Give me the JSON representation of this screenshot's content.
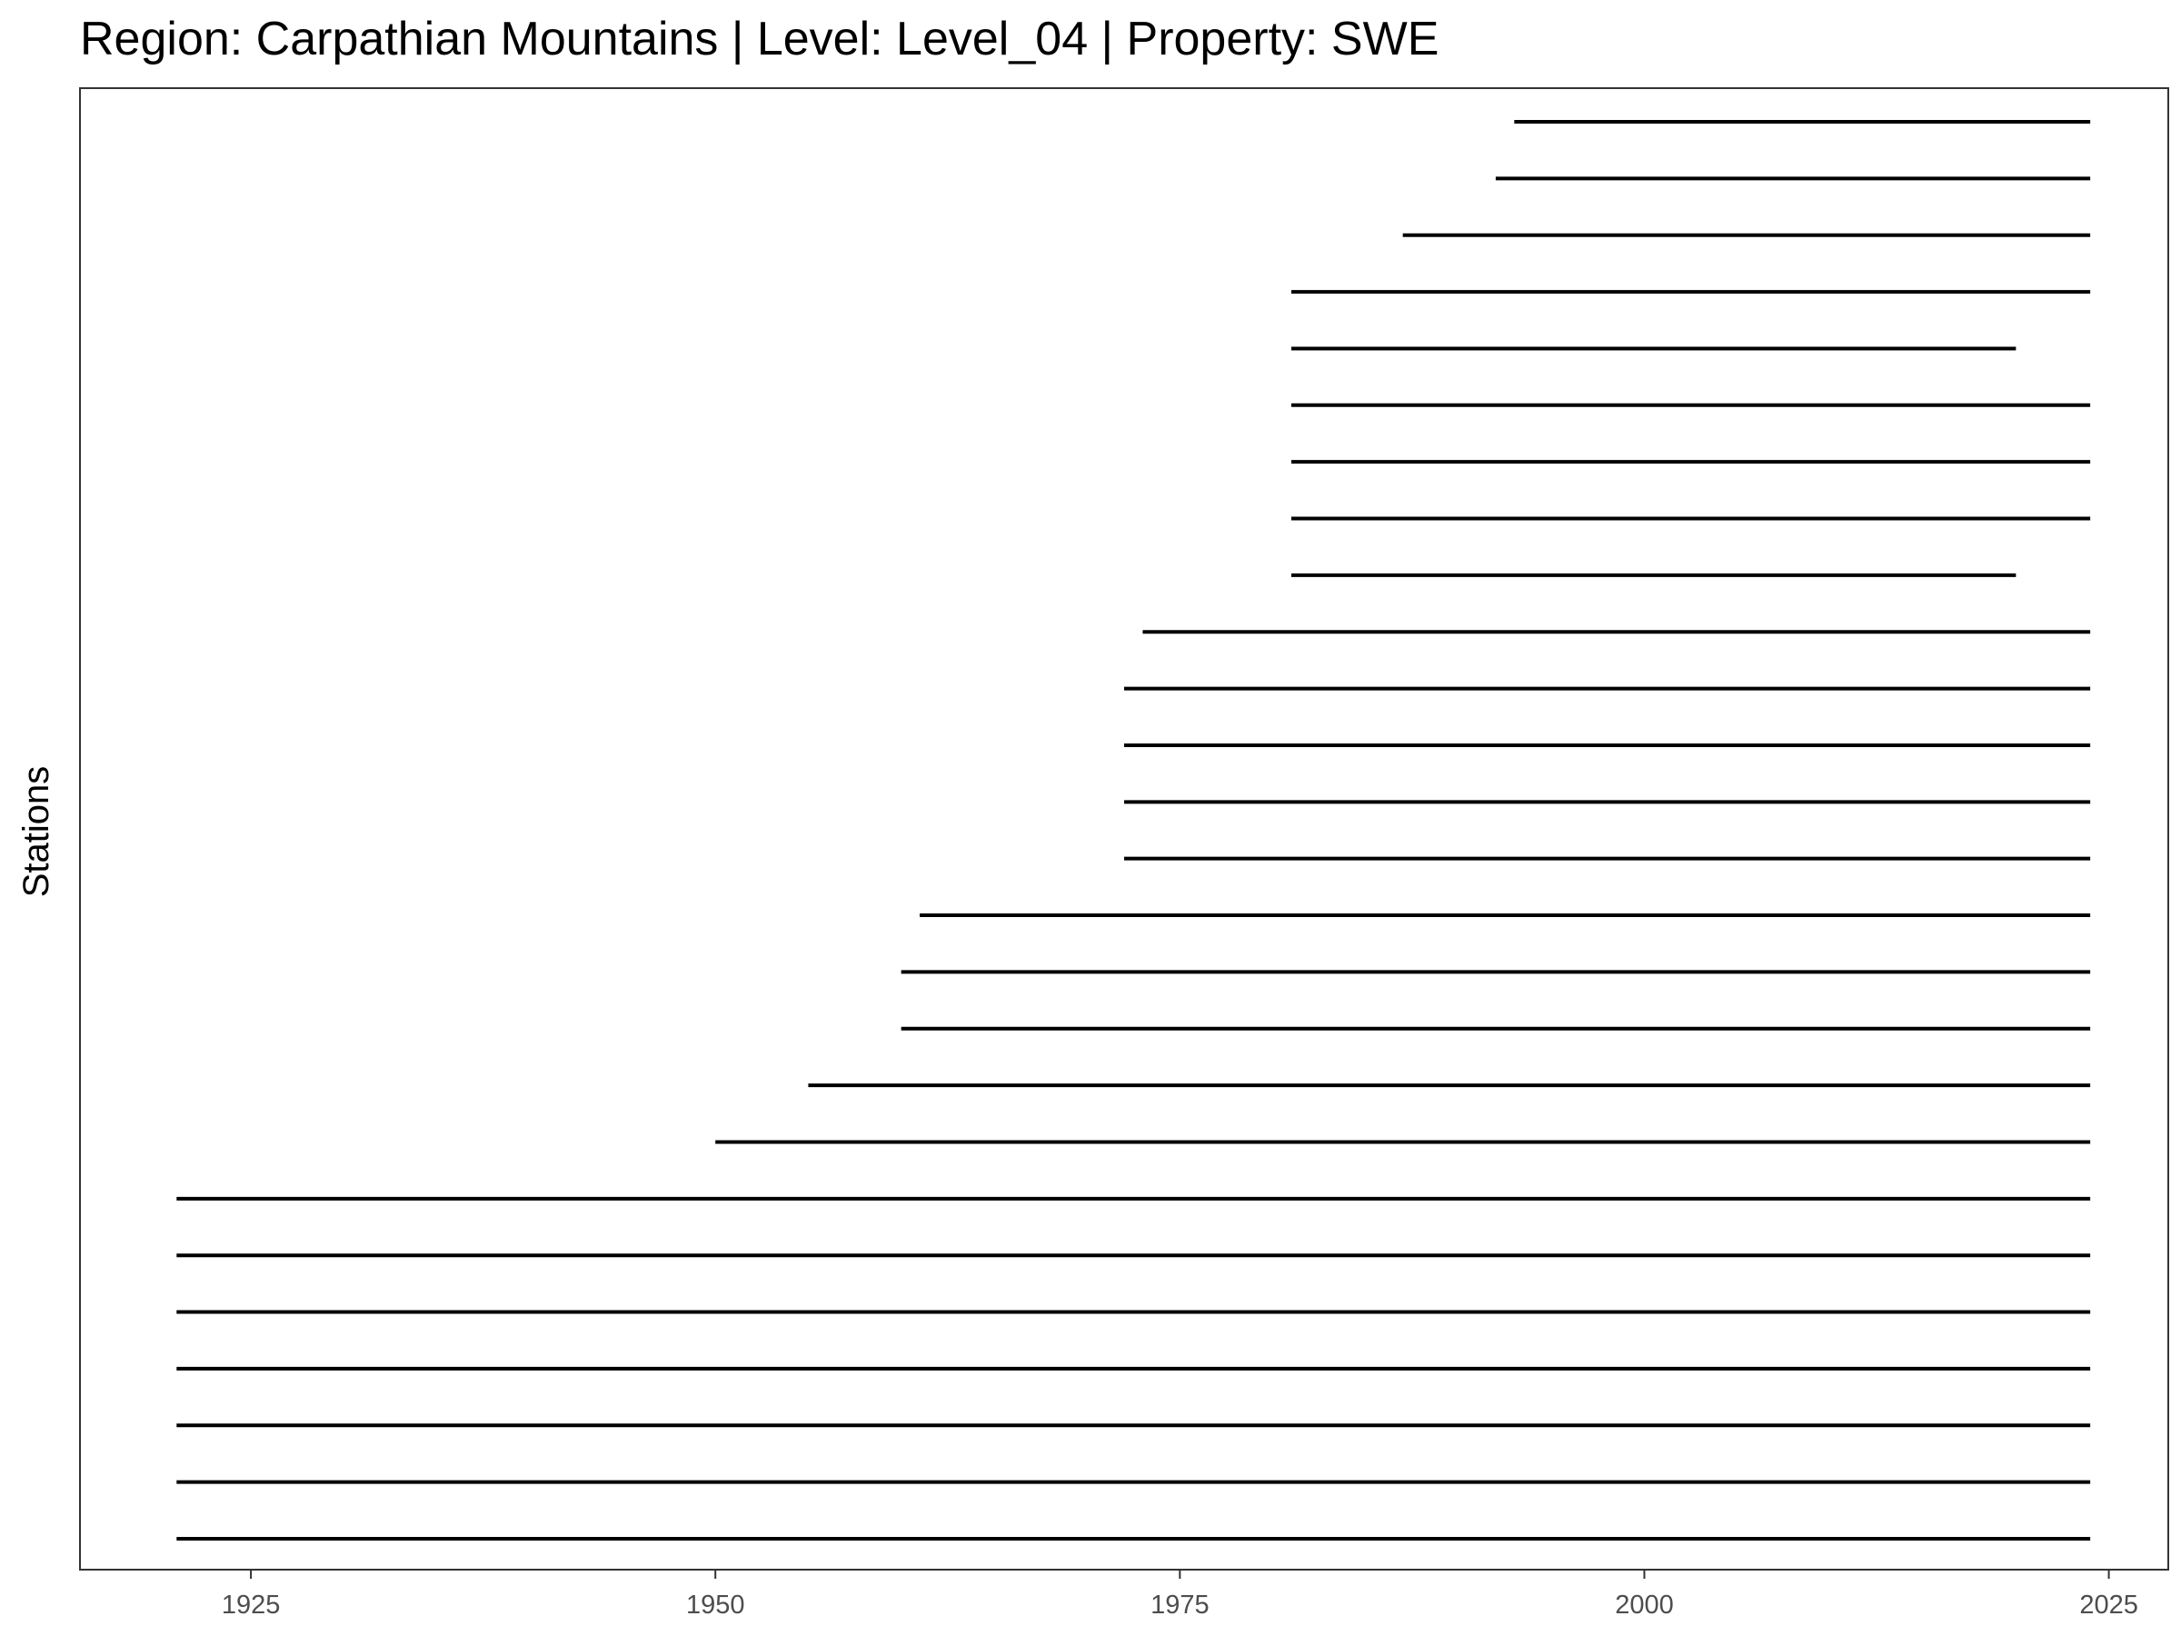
{
  "chart_data": {
    "type": "timeline",
    "title": "Region: Carpathian Mountains | Level: Level_04 | Property: SWE",
    "xlabel": "",
    "ylabel": "Stations",
    "xlim": [
      1915.8,
      2028.2
    ],
    "xticks": [
      1925,
      1950,
      1975,
      2000,
      2025
    ],
    "grid": false,
    "segments": [
      {
        "start": 1921,
        "end": 2024
      },
      {
        "start": 1921,
        "end": 2024
      },
      {
        "start": 1921,
        "end": 2024
      },
      {
        "start": 1921,
        "end": 2024
      },
      {
        "start": 1921,
        "end": 2024
      },
      {
        "start": 1921,
        "end": 2024
      },
      {
        "start": 1921,
        "end": 2024
      },
      {
        "start": 1950,
        "end": 2024
      },
      {
        "start": 1955,
        "end": 2024
      },
      {
        "start": 1960,
        "end": 2024
      },
      {
        "start": 1960,
        "end": 2024
      },
      {
        "start": 1961,
        "end": 2024
      },
      {
        "start": 1972,
        "end": 2024
      },
      {
        "start": 1972,
        "end": 2024
      },
      {
        "start": 1972,
        "end": 2024
      },
      {
        "start": 1972,
        "end": 2024
      },
      {
        "start": 1973,
        "end": 2024
      },
      {
        "start": 1981,
        "end": 2020
      },
      {
        "start": 1981,
        "end": 2024
      },
      {
        "start": 1981,
        "end": 2024
      },
      {
        "start": 1981,
        "end": 2024
      },
      {
        "start": 1981,
        "end": 2020
      },
      {
        "start": 1981,
        "end": 2024
      },
      {
        "start": 1987,
        "end": 2024
      },
      {
        "start": 1992,
        "end": 2024
      },
      {
        "start": 1993,
        "end": 2024
      }
    ],
    "colors": {
      "line": "#000000",
      "panel_border": "#333333",
      "tick_label": "#4d4d4d"
    }
  }
}
